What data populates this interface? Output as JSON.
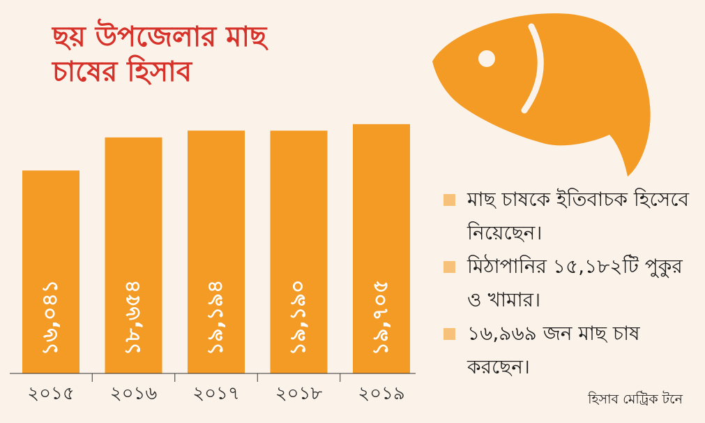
{
  "title": "ছয় উপজেলার মাছ চাষের হিসাব",
  "colors": {
    "bar": "#f39b25",
    "title": "#d7322a",
    "bullet": "#f8c17a",
    "fish": "#f39b25",
    "background": "#fbf3ea"
  },
  "chart_data": {
    "type": "bar",
    "categories": [
      "২০১৫",
      "২০১৬",
      "২০১৭",
      "২০১৮",
      "২০১৯"
    ],
    "values": [
      16041,
      18654,
      19194,
      19190,
      19705
    ],
    "value_labels": [
      "১৬,০৪১",
      "১৮,৬৫৪",
      "১৯,১৯৪",
      "১৯,১৯০",
      "১৯,৭০৫"
    ],
    "title": "ছয় উপজেলার মাছ চাষের হিসাব",
    "xlabel": "",
    "ylabel": "",
    "ylim": [
      0,
      24000
    ],
    "grid": false,
    "legend": "none"
  },
  "notes": [
    "মাছ চাষকে ইতিবাচক হিসেবে নিয়েছেন।",
    "মিঠাপানির ১৫,১৮২টি পুকুর ও খামার।",
    "১৬,৯৬৯ জন মাছ চাষ করছেন।"
  ],
  "source": "হিসাব মেট্রিক টনে",
  "icons": {
    "fish": "fish-icon"
  }
}
